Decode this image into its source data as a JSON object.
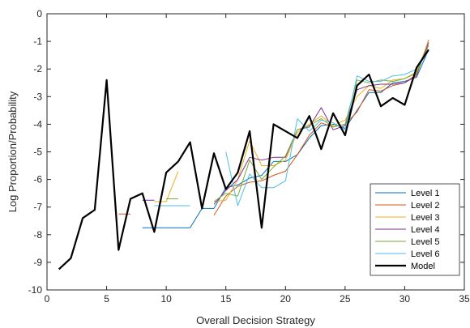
{
  "chart_data": {
    "type": "line",
    "title": "",
    "xlabel": "Overall Decision Strategy",
    "ylabel": "Log Proportion/Probability",
    "xlim": [
      0,
      35
    ],
    "ylim": [
      -10,
      0
    ],
    "xticks": [
      "0",
      "5",
      "10",
      "15",
      "20",
      "25",
      "30",
      "35"
    ],
    "yticks": [
      "0",
      "-1",
      "-2",
      "-3",
      "-4",
      "-5",
      "-6",
      "-7",
      "-8",
      "-9",
      "-10"
    ],
    "legend_position": "bottom-right",
    "series": [
      {
        "name": "Level 1",
        "color": "#0072BD",
        "width": 1,
        "points": [
          [
            8,
            -7.75
          ],
          [
            12,
            -7.75
          ],
          [
            13,
            -7.05
          ],
          [
            14,
            -7.05
          ],
          [
            15,
            -6.3
          ],
          [
            16,
            -6.2
          ],
          [
            17,
            -5.95
          ],
          [
            18,
            -5.85
          ],
          [
            19,
            -5.35
          ],
          [
            20,
            -5.35
          ],
          [
            21,
            -5.1
          ],
          [
            22,
            -4.5
          ],
          [
            23,
            -4.05
          ],
          [
            24,
            -4.0
          ],
          [
            25,
            -4.15
          ],
          [
            26,
            -3.5
          ],
          [
            27,
            -2.85
          ],
          [
            28,
            -2.85
          ],
          [
            29,
            -2.5
          ],
          [
            30,
            -2.45
          ],
          [
            31,
            -2.3
          ],
          [
            32,
            -1.3
          ]
        ]
      },
      {
        "name": "Level 2",
        "color": "#D95319",
        "width": 1,
        "points": [
          [
            6,
            -7.25
          ],
          [
            7,
            -7.25
          ],
          null,
          [
            14,
            -7.3
          ],
          [
            15,
            -6.6
          ],
          [
            16,
            -6.25
          ],
          [
            17,
            -6.1
          ],
          [
            18,
            -6.05
          ],
          [
            19,
            -5.85
          ],
          [
            20,
            -5.7
          ],
          [
            21,
            -5.1
          ],
          [
            22,
            -4.4
          ],
          [
            23,
            -3.95
          ],
          [
            24,
            -4.1
          ],
          [
            25,
            -4.0
          ],
          [
            26,
            -3.55
          ],
          [
            27,
            -2.75
          ],
          [
            28,
            -2.8
          ],
          [
            29,
            -2.6
          ],
          [
            30,
            -2.5
          ],
          [
            31,
            -2.25
          ],
          [
            32,
            -0.95
          ]
        ]
      },
      {
        "name": "Level 3",
        "color": "#EDB120",
        "width": 1,
        "points": [
          [
            9,
            -6.8
          ],
          [
            10,
            -6.8
          ],
          [
            11,
            -5.7
          ],
          null,
          [
            14,
            -6.8
          ],
          [
            15,
            -6.75
          ],
          [
            16,
            -6.0
          ],
          [
            17,
            -4.6
          ],
          [
            18,
            -5.5
          ],
          [
            19,
            -5.5
          ],
          [
            20,
            -5.3
          ],
          [
            21,
            -4.3
          ],
          [
            22,
            -4.0
          ],
          [
            23,
            -3.7
          ],
          [
            24,
            -4.05
          ],
          [
            25,
            -3.85
          ],
          [
            26,
            -3.0
          ],
          [
            27,
            -2.6
          ],
          [
            28,
            -2.7
          ],
          [
            29,
            -2.4
          ],
          [
            30,
            -2.35
          ],
          [
            31,
            -2.1
          ],
          [
            32,
            -1.0
          ]
        ]
      },
      {
        "name": "Level 4",
        "color": "#7E2F8E",
        "width": 1,
        "points": [
          [
            8,
            -6.75
          ],
          [
            9,
            -6.75
          ],
          null,
          [
            14,
            -6.9
          ],
          [
            15,
            -6.4
          ],
          [
            16,
            -6.0
          ],
          [
            17,
            -5.2
          ],
          [
            18,
            -5.3
          ],
          [
            19,
            -5.2
          ],
          [
            20,
            -5.2
          ],
          [
            21,
            -4.2
          ],
          [
            22,
            -4.1
          ],
          [
            23,
            -3.4
          ],
          [
            24,
            -4.2
          ],
          [
            25,
            -4.05
          ],
          [
            26,
            -2.75
          ],
          [
            27,
            -2.6
          ],
          [
            28,
            -2.55
          ],
          [
            29,
            -2.55
          ],
          [
            30,
            -2.5
          ],
          [
            31,
            -2.2
          ],
          [
            32,
            -1.05
          ]
        ]
      },
      {
        "name": "Level 5",
        "color": "#77AC30",
        "width": 1,
        "points": [
          [
            10,
            -6.7
          ],
          [
            11,
            -6.7
          ],
          null,
          [
            14,
            -6.8
          ],
          [
            15,
            -6.5
          ],
          [
            16,
            -6.6
          ],
          [
            17,
            -5.3
          ],
          [
            18,
            -6.0
          ],
          [
            19,
            -5.55
          ],
          [
            20,
            -5.15
          ],
          [
            21,
            -4.2
          ],
          [
            22,
            -4.05
          ],
          [
            23,
            -3.8
          ],
          [
            24,
            -4.1
          ],
          [
            25,
            -4.0
          ],
          [
            26,
            -2.4
          ],
          [
            27,
            -2.5
          ],
          [
            28,
            -2.4
          ],
          [
            29,
            -2.45
          ],
          [
            30,
            -2.35
          ],
          [
            31,
            -2.15
          ],
          [
            32,
            -1.15
          ]
        ]
      },
      {
        "name": "Level 6",
        "color": "#4DBEEE",
        "width": 1,
        "points": [
          [
            9,
            -6.95
          ],
          [
            10,
            -6.95
          ],
          [
            12,
            -6.95
          ],
          null,
          [
            15,
            -5.0
          ],
          [
            16,
            -6.95
          ],
          [
            17,
            -5.8
          ],
          [
            18,
            -6.3
          ],
          [
            19,
            -6.3
          ],
          [
            20,
            -6.05
          ],
          [
            21,
            -3.8
          ],
          [
            22,
            -4.25
          ],
          [
            23,
            -3.85
          ],
          [
            24,
            -3.95
          ],
          [
            25,
            -4.2
          ],
          [
            26,
            -2.25
          ],
          [
            27,
            -2.45
          ],
          [
            28,
            -2.45
          ],
          [
            29,
            -2.25
          ],
          [
            30,
            -2.2
          ],
          [
            31,
            -2.0
          ],
          [
            32,
            -1.35
          ]
        ]
      },
      {
        "name": "Model",
        "color": "#000000",
        "width": 2.2,
        "points": [
          [
            1,
            -9.25
          ],
          [
            2,
            -8.85
          ],
          [
            3,
            -7.4
          ],
          [
            4,
            -7.1
          ],
          [
            5,
            -2.4
          ],
          [
            6,
            -8.55
          ],
          [
            7,
            -6.7
          ],
          [
            8,
            -6.5
          ],
          [
            9,
            -7.9
          ],
          [
            10,
            -5.75
          ],
          [
            11,
            -5.35
          ],
          [
            12,
            -4.65
          ],
          [
            13,
            -7.05
          ],
          [
            14,
            -5.05
          ],
          [
            15,
            -6.35
          ],
          [
            16,
            -5.75
          ],
          [
            17,
            -4.25
          ],
          [
            18,
            -7.75
          ],
          [
            19,
            -4.0
          ],
          [
            20,
            -4.25
          ],
          [
            21,
            -4.5
          ],
          [
            22,
            -3.7
          ],
          [
            23,
            -4.9
          ],
          [
            24,
            -3.6
          ],
          [
            25,
            -4.4
          ],
          [
            26,
            -2.6
          ],
          [
            27,
            -2.2
          ],
          [
            28,
            -3.35
          ],
          [
            29,
            -3.05
          ],
          [
            30,
            -3.3
          ],
          [
            31,
            -1.95
          ],
          [
            32,
            -1.3
          ]
        ]
      }
    ]
  }
}
